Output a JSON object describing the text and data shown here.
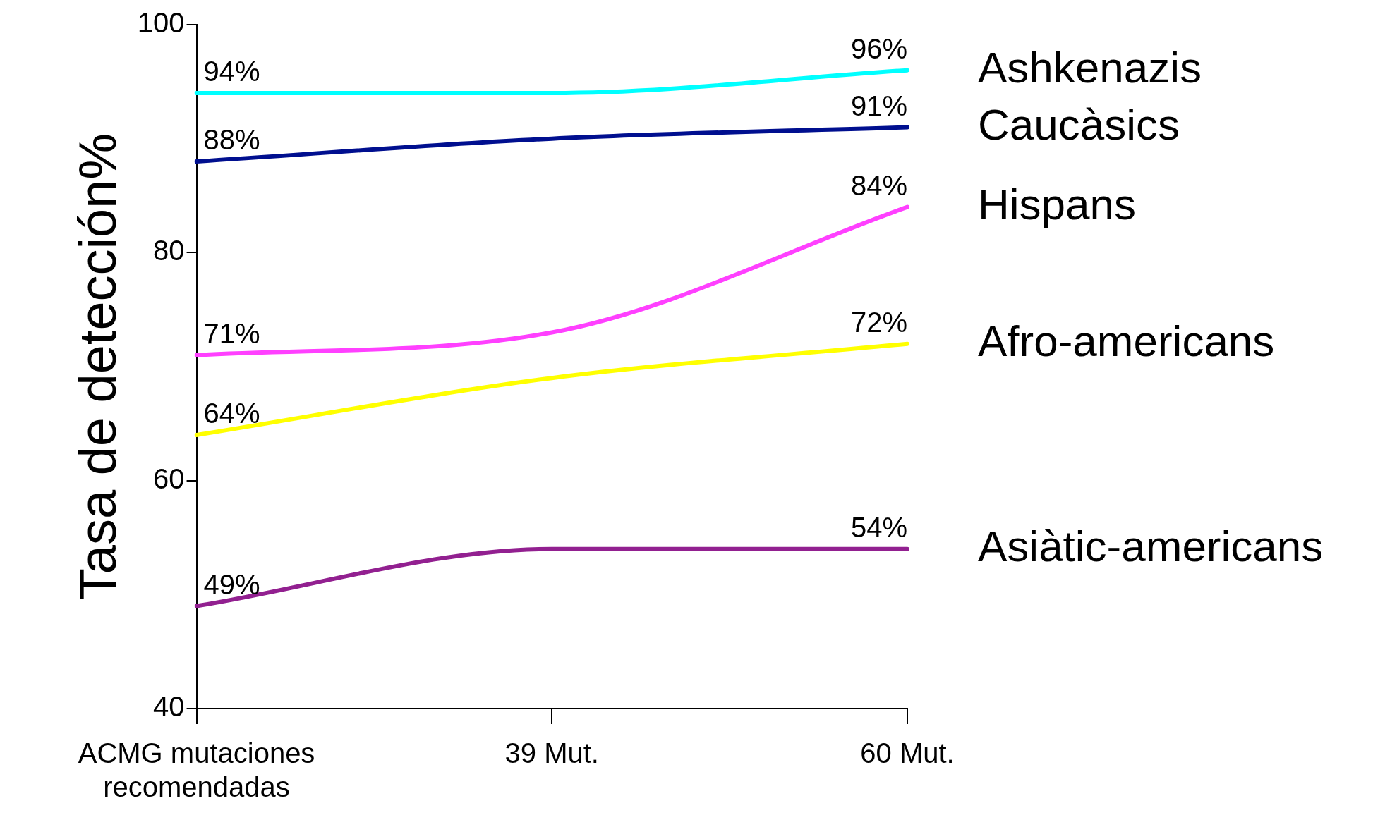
{
  "chart_data": {
    "type": "line",
    "ylabel": "Tasa de detección%",
    "categories": [
      "ACMG mutaciones recomendadas",
      "39 Mut.",
      "60 Mut."
    ],
    "ylim": [
      40,
      100
    ],
    "yticks": [
      40,
      60,
      80,
      100
    ],
    "grid": false,
    "marker": "none",
    "series": [
      {
        "name": "Ashkenazis",
        "color": "#00ffff",
        "values": [
          94,
          94,
          96
        ],
        "value_labels": [
          "94%",
          null,
          "96%"
        ]
      },
      {
        "name": "Caucàsics",
        "color": "#000f8f",
        "values": [
          88,
          90,
          91
        ],
        "value_labels": [
          "88%",
          null,
          "91%"
        ]
      },
      {
        "name": "Hispans",
        "color": "#ff40ff",
        "values": [
          71,
          73,
          84
        ],
        "value_labels": [
          "71%",
          null,
          "84%"
        ]
      },
      {
        "name": "Afro-americans",
        "color": "#ffff00",
        "values": [
          64,
          69,
          72
        ],
        "value_labels": [
          "64%",
          null,
          "72%"
        ]
      },
      {
        "name": "Asiàtic-americans",
        "color": "#922090",
        "values": [
          49,
          54,
          54
        ],
        "value_labels": [
          "49%",
          null,
          "54%"
        ]
      }
    ]
  }
}
